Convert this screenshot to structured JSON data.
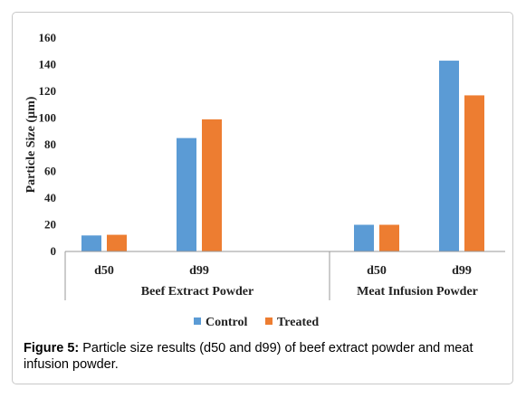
{
  "chart_data": {
    "type": "bar",
    "ylabel": "Particle Size (µm)",
    "ylim": [
      0,
      160
    ],
    "yticks": [
      0,
      20,
      40,
      60,
      80,
      100,
      120,
      140,
      160
    ],
    "grid": false,
    "legend_position": "bottom",
    "groups": [
      {
        "label": "Beef Extract Powder",
        "categories": [
          "d50",
          "d99"
        ]
      },
      {
        "label": "Meat Infusion Powder",
        "categories": [
          "d50",
          "d99"
        ]
      }
    ],
    "series": [
      {
        "name": "Control",
        "color": "#5b9bd5",
        "values": [
          12,
          85,
          20,
          143
        ]
      },
      {
        "name": "Treated",
        "color": "#ed7d31",
        "values": [
          12.5,
          99,
          20,
          117
        ]
      }
    ]
  },
  "caption": {
    "label": "Figure 5:",
    "text": " Particle size results (d50 and d99) of beef extract powder and meat infusion powder."
  }
}
